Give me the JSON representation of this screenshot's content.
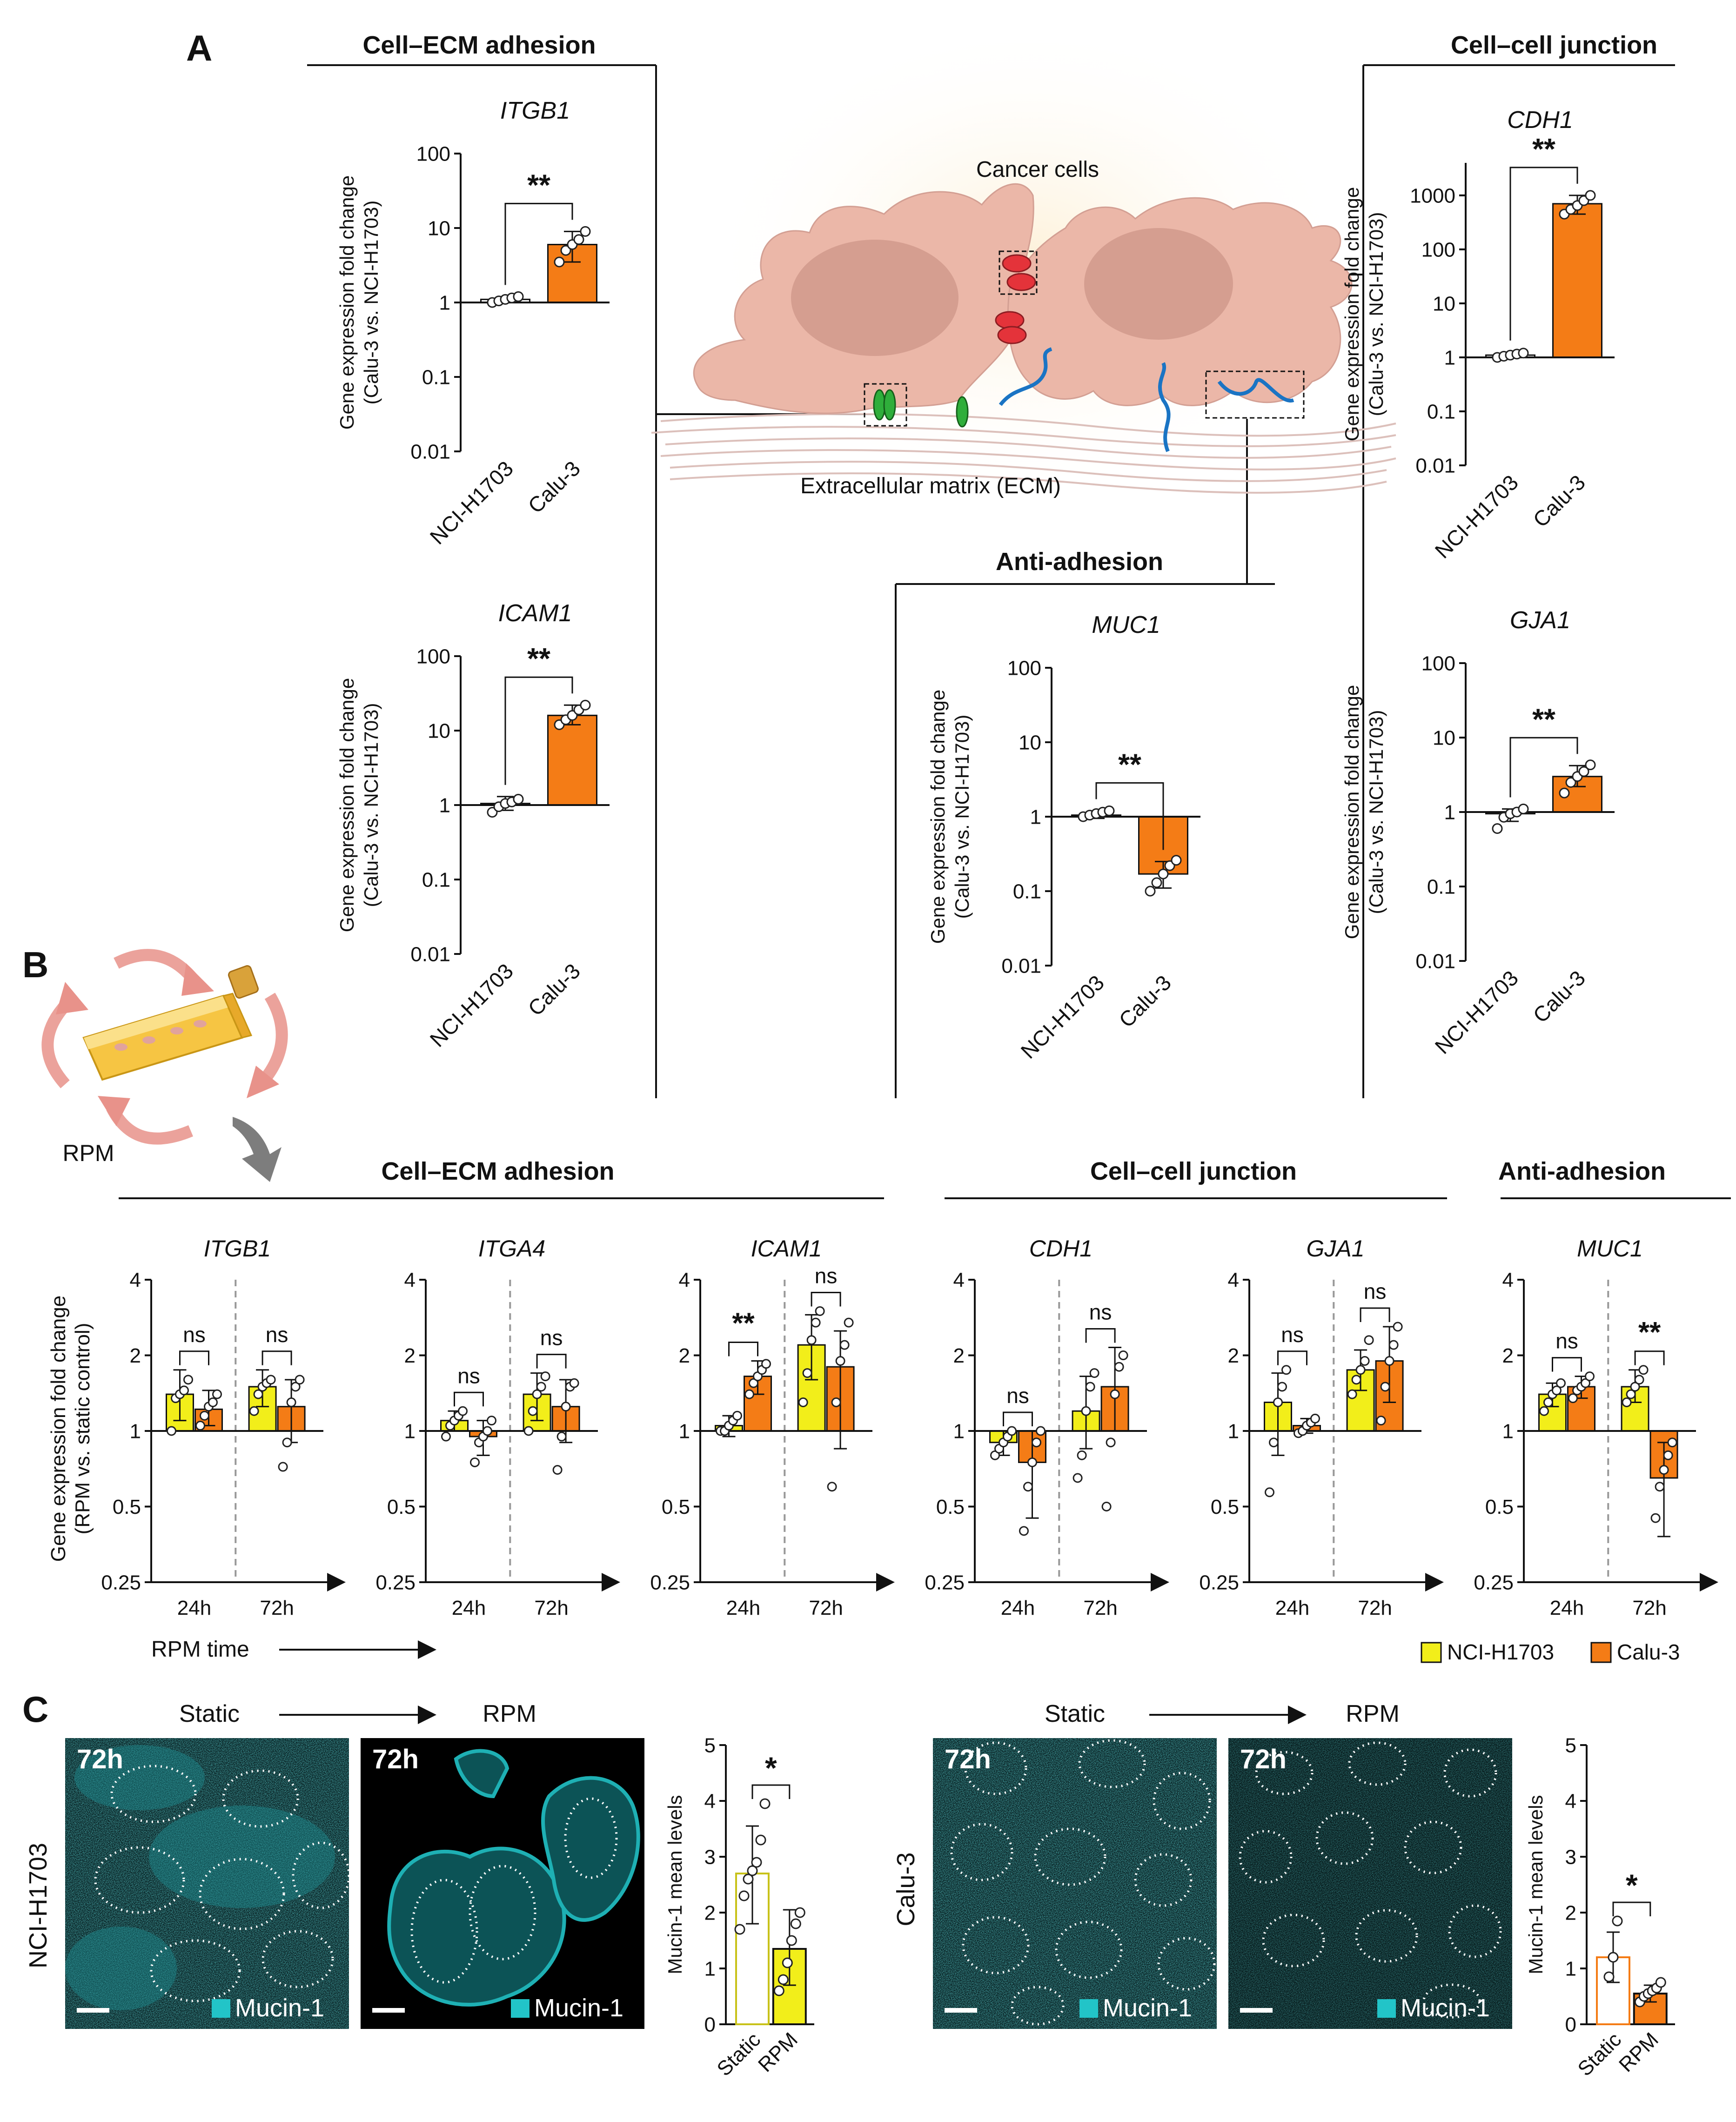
{
  "panel_labels": {
    "a": "A",
    "b": "B",
    "c": "C"
  },
  "panel_a": {
    "section_titles": {
      "ecm": "Cell–ECM adhesion",
      "cellcell": "Cell–cell junction",
      "anti": "Anti-adhesion"
    },
    "schematic": {
      "cancer_cells": "Cancer cells",
      "ecm_label": "Extracellular matrix (ECM)"
    }
  },
  "panel_b": {
    "device_label": "RPM",
    "section_titles": {
      "ecm": "Cell–ECM adhesion",
      "cellcell": "Cell–cell junction",
      "anti": "Anti-adhesion"
    },
    "ylabel_line1": "Gene expression fold change",
    "ylabel_line2": "(RPM vs. static control)",
    "rpm_time_label": "RPM time",
    "legend": [
      "NCI-H1703",
      "Calu-3"
    ]
  },
  "panel_c": {
    "left": {
      "row_label": "NCI-H1703",
      "arrow_from": "Static",
      "arrow_to": "RPM",
      "images": [
        {
          "time": "72h",
          "stain": "Mucin-1"
        },
        {
          "time": "72h",
          "stain": "Mucin-1"
        }
      ]
    },
    "right": {
      "row_label": "Calu-3",
      "arrow_from": "Static",
      "arrow_to": "RPM",
      "images": [
        {
          "time": "72h",
          "stain": "Mucin-1"
        },
        {
          "time": "72h",
          "stain": "Mucin-1"
        }
      ]
    }
  },
  "colors": {
    "nci": "#f2ee1a",
    "calu": "#f47c16",
    "mucin": "#22c4c8"
  },
  "chart_data": [
    {
      "id": "a_itgb1",
      "type": "bar",
      "title": "ITGB1",
      "scale": "log10",
      "ylabel": [
        "Gene expression fold change",
        "(Calu-3 vs. NCI-H1703)"
      ],
      "categories": [
        "NCI-H1703",
        "Calu-3"
      ],
      "values": [
        1.1,
        6
      ],
      "error": [
        [
          1.0,
          1.2
        ],
        [
          3.5,
          9
        ]
      ],
      "points": [
        [
          1.0,
          1.05,
          1.1,
          1.15,
          1.2
        ],
        [
          3.5,
          5,
          6,
          7,
          9
        ]
      ],
      "ytick_values": [
        0.01,
        0.1,
        1,
        10,
        100
      ],
      "ytick_labels": [
        "0.01",
        "0.1",
        "1",
        "10",
        "100"
      ],
      "ylim": [
        0.01,
        100
      ],
      "significance": [
        {
          "label": "**"
        }
      ]
    },
    {
      "id": "a_icam1",
      "type": "bar",
      "title": "ICAM1",
      "scale": "log10",
      "ylabel": [
        "Gene expression fold change",
        "(Calu-3 vs. NCI-H1703)"
      ],
      "categories": [
        "NCI-H1703",
        "Calu-3"
      ],
      "values": [
        1.05,
        16
      ],
      "error": [
        [
          0.85,
          1.3
        ],
        [
          12,
          22
        ]
      ],
      "points": [
        [
          0.8,
          0.95,
          1.05,
          1.1,
          1.2
        ],
        [
          12,
          14,
          16,
          19,
          22
        ]
      ],
      "ytick_values": [
        0.01,
        0.1,
        1,
        10,
        100
      ],
      "ytick_labels": [
        "0.01",
        "0.1",
        "1",
        "10",
        "100"
      ],
      "ylim": [
        0.01,
        100
      ],
      "significance": [
        {
          "label": "**"
        }
      ]
    },
    {
      "id": "a_cdh1",
      "type": "bar",
      "title": "CDH1",
      "scale": "log10",
      "ylabel": [
        "Gene expression fold change",
        "(Calu-3 vs. NCI-H1703)"
      ],
      "categories": [
        "NCI-H1703",
        "Calu-3"
      ],
      "values": [
        1.1,
        700
      ],
      "error": [
        [
          1.0,
          1.25
        ],
        [
          450,
          1000
        ]
      ],
      "points": [
        [
          1.0,
          1.05,
          1.1,
          1.15,
          1.2
        ],
        [
          450,
          550,
          650,
          800,
          1000
        ]
      ],
      "ytick_values": [
        0.01,
        0.1,
        1,
        10,
        100,
        1000
      ],
      "ytick_labels": [
        "0.01",
        "0.1",
        "1",
        "10",
        "100",
        "1000"
      ],
      "ylim": [
        0.01,
        4000
      ],
      "significance": [
        {
          "label": "**"
        }
      ]
    },
    {
      "id": "a_muc1",
      "type": "bar",
      "title": "MUC1",
      "scale": "log10",
      "ylabel": [
        "Gene expression fold change",
        "(Calu-3 vs. NCI-H1703)"
      ],
      "categories": [
        "NCI-H1703",
        "Calu-3"
      ],
      "values": [
        1.05,
        0.17
      ],
      "error": [
        [
          0.95,
          1.2
        ],
        [
          0.11,
          0.25
        ]
      ],
      "points": [
        [
          1.0,
          1.05,
          1.1,
          1.15,
          1.2
        ],
        [
          0.1,
          0.13,
          0.17,
          0.22,
          0.26
        ]
      ],
      "ytick_values": [
        0.01,
        0.1,
        1,
        10,
        100
      ],
      "ytick_labels": [
        "0.01",
        "0.1",
        "1",
        "10",
        "100"
      ],
      "ylim": [
        0.01,
        100
      ],
      "significance": [
        {
          "label": "**"
        }
      ]
    },
    {
      "id": "a_gja1",
      "type": "bar",
      "title": "GJA1",
      "scale": "log10",
      "ylabel": [
        "Gene expression fold change",
        "(Calu-3 vs. NCI-H1703)"
      ],
      "categories": [
        "NCI-H1703",
        "Calu-3"
      ],
      "values": [
        0.95,
        3.0
      ],
      "error": [
        [
          0.75,
          1.1
        ],
        [
          2.2,
          4.2
        ]
      ],
      "points": [
        [
          0.6,
          0.85,
          0.95,
          1.0,
          1.1
        ],
        [
          1.8,
          2.5,
          3.0,
          3.5,
          4.3
        ]
      ],
      "ytick_values": [
        0.01,
        0.1,
        1,
        10,
        100
      ],
      "ytick_labels": [
        "0.01",
        "0.1",
        "1",
        "10",
        "100"
      ],
      "ylim": [
        0.01,
        100
      ],
      "significance": [
        {
          "label": "**"
        }
      ]
    },
    {
      "id": "b_itgb1",
      "type": "bar",
      "title": "ITGB1",
      "scale": "log2",
      "x_groups": [
        "24h",
        "72h"
      ],
      "series": [
        "NCI-H1703",
        "Calu-3"
      ],
      "values": [
        [
          1.4,
          1.22
        ],
        [
          1.5,
          1.25
        ]
      ],
      "error": [
        [
          [
            1.1,
            1.75
          ],
          [
            1.05,
            1.45
          ]
        ],
        [
          [
            1.25,
            1.75
          ],
          [
            0.9,
            1.6
          ]
        ]
      ],
      "points": [
        [
          [
            1.0,
            1.35,
            1.4,
            1.45,
            1.6
          ],
          [
            1.05,
            1.15,
            1.25,
            1.3,
            1.4
          ]
        ],
        [
          [
            1.2,
            1.4,
            1.5,
            1.55,
            1.6
          ],
          [
            0.72,
            0.9,
            1.3,
            1.5,
            1.6
          ]
        ]
      ],
      "ytick_values": [
        0.25,
        0.5,
        1,
        2,
        4
      ],
      "ytick_labels": [
        "0.25",
        "0.5",
        "1",
        "2",
        "4"
      ],
      "ylim": [
        0.25,
        4
      ],
      "significance": [
        {
          "label": "ns"
        },
        {
          "label": "ns"
        }
      ]
    },
    {
      "id": "b_itga4",
      "type": "bar",
      "title": "ITGA4",
      "scale": "log2",
      "x_groups": [
        "24h",
        "72h"
      ],
      "series": [
        "NCI-H1703",
        "Calu-3"
      ],
      "values": [
        [
          1.1,
          0.95
        ],
        [
          1.4,
          1.25
        ]
      ],
      "error": [
        [
          [
            1.0,
            1.2
          ],
          [
            0.8,
            1.1
          ]
        ],
        [
          [
            1.1,
            1.7
          ],
          [
            0.9,
            1.6
          ]
        ]
      ],
      "points": [
        [
          [
            0.95,
            1.05,
            1.1,
            1.15,
            1.2
          ],
          [
            0.75,
            0.9,
            0.95,
            1.0,
            1.1
          ]
        ],
        [
          [
            1.0,
            1.2,
            1.4,
            1.5,
            1.65
          ],
          [
            0.7,
            0.95,
            1.25,
            1.5,
            1.55
          ]
        ]
      ],
      "ytick_values": [
        0.25,
        0.5,
        1,
        2,
        4
      ],
      "ytick_labels": [
        "0.25",
        "0.5",
        "1",
        "2",
        "4"
      ],
      "ylim": [
        0.25,
        4
      ],
      "significance": [
        {
          "label": "ns"
        },
        {
          "label": "ns"
        }
      ]
    },
    {
      "id": "b_icam1",
      "type": "bar",
      "title": "ICAM1",
      "scale": "log2",
      "x_groups": [
        "24h",
        "72h"
      ],
      "series": [
        "NCI-H1703",
        "Calu-3"
      ],
      "values": [
        [
          1.05,
          1.65
        ],
        [
          2.2,
          1.8
        ]
      ],
      "error": [
        [
          [
            0.95,
            1.15
          ],
          [
            1.4,
            1.9
          ]
        ],
        [
          [
            1.6,
            2.9
          ],
          [
            0.85,
            2.5
          ]
        ]
      ],
      "points": [
        [
          [
            1.0,
            1.0,
            1.05,
            1.1,
            1.15
          ],
          [
            1.4,
            1.55,
            1.65,
            1.75,
            1.85
          ]
        ],
        [
          [
            1.3,
            1.7,
            2.3,
            2.7,
            3.0
          ],
          [
            0.6,
            1.3,
            1.9,
            2.2,
            2.7
          ]
        ]
      ],
      "ytick_values": [
        0.25,
        0.5,
        1,
        2,
        4
      ],
      "ytick_labels": [
        "0.25",
        "0.5",
        "1",
        "2",
        "4"
      ],
      "ylim": [
        0.25,
        4
      ],
      "significance": [
        {
          "label": "**"
        },
        {
          "label": "ns"
        }
      ]
    },
    {
      "id": "b_cdh1",
      "type": "bar",
      "title": "CDH1",
      "scale": "log2",
      "x_groups": [
        "24h",
        "72h"
      ],
      "series": [
        "NCI-H1703",
        "Calu-3"
      ],
      "values": [
        [
          0.9,
          0.75
        ],
        [
          1.2,
          1.5
        ]
      ],
      "error": [
        [
          [
            0.8,
            1.0
          ],
          [
            0.45,
            1.0
          ]
        ],
        [
          [
            0.85,
            1.65
          ],
          [
            1.0,
            2.15
          ]
        ]
      ],
      "points": [
        [
          [
            0.8,
            0.85,
            0.9,
            0.95,
            1.0
          ],
          [
            0.4,
            0.6,
            0.75,
            0.9,
            1.0
          ]
        ],
        [
          [
            0.65,
            0.8,
            1.2,
            1.5,
            1.7
          ],
          [
            0.5,
            0.9,
            1.4,
            1.8,
            2.0
          ]
        ]
      ],
      "ytick_values": [
        0.25,
        0.5,
        1,
        2,
        4
      ],
      "ytick_labels": [
        "0.25",
        "0.5",
        "1",
        "2",
        "4"
      ],
      "ylim": [
        0.25,
        4
      ],
      "significance": [
        {
          "label": "ns"
        },
        {
          "label": "ns"
        }
      ]
    },
    {
      "id": "b_gja1",
      "type": "bar",
      "title": "GJA1",
      "scale": "log2",
      "x_groups": [
        "24h",
        "72h"
      ],
      "series": [
        "NCI-H1703",
        "Calu-3"
      ],
      "values": [
        [
          1.3,
          1.05
        ],
        [
          1.75,
          1.9
        ]
      ],
      "error": [
        [
          [
            0.8,
            1.7
          ],
          [
            0.98,
            1.12
          ]
        ],
        [
          [
            1.45,
            2.1
          ],
          [
            1.3,
            2.6
          ]
        ]
      ],
      "points": [
        [
          [
            0.57,
            0.9,
            1.3,
            1.5,
            1.75
          ],
          [
            0.98,
            1.0,
            1.05,
            1.08,
            1.12
          ]
        ],
        [
          [
            1.4,
            1.6,
            1.75,
            1.9,
            2.3
          ],
          [
            1.1,
            1.5,
            1.9,
            2.2,
            2.6
          ]
        ]
      ],
      "ytick_values": [
        0.25,
        0.5,
        1,
        2,
        4
      ],
      "ytick_labels": [
        "0.25",
        "0.5",
        "1",
        "2",
        "4"
      ],
      "ylim": [
        0.25,
        4
      ],
      "significance": [
        {
          "label": "ns"
        },
        {
          "label": "ns"
        }
      ]
    },
    {
      "id": "b_muc1",
      "type": "bar",
      "title": "MUC1",
      "scale": "log2",
      "x_groups": [
        "24h",
        "72h"
      ],
      "series": [
        "NCI-H1703",
        "Calu-3"
      ],
      "values": [
        [
          1.4,
          1.5
        ],
        [
          1.5,
          0.65
        ]
      ],
      "error": [
        [
          [
            1.25,
            1.55
          ],
          [
            1.35,
            1.65
          ]
        ],
        [
          [
            1.3,
            1.75
          ],
          [
            0.38,
            0.9
          ]
        ]
      ],
      "points": [
        [
          [
            1.2,
            1.3,
            1.4,
            1.45,
            1.55
          ],
          [
            1.35,
            1.45,
            1.5,
            1.55,
            1.65
          ]
        ],
        [
          [
            1.3,
            1.4,
            1.5,
            1.6,
            1.75
          ],
          [
            0.45,
            0.6,
            0.7,
            0.8,
            0.9
          ]
        ]
      ],
      "ytick_values": [
        0.25,
        0.5,
        1,
        2,
        4
      ],
      "ytick_labels": [
        "0.25",
        "0.5",
        "1",
        "2",
        "4"
      ],
      "ylim": [
        0.25,
        4
      ],
      "significance": [
        {
          "label": "ns"
        },
        {
          "label": "**"
        }
      ]
    },
    {
      "id": "c_nci",
      "type": "bar",
      "scale": "linear",
      "ylabel": "Mucin-1 mean levels",
      "categories": [
        "Static",
        "RPM"
      ],
      "values": [
        2.7,
        1.35
      ],
      "error": [
        [
          1.8,
          3.55
        ],
        [
          0.7,
          2.05
        ]
      ],
      "points": [
        [
          1.7,
          2.3,
          2.6,
          2.75,
          2.9,
          3.3,
          3.95
        ],
        [
          0.6,
          0.8,
          1.1,
          1.5,
          1.8,
          2.0
        ]
      ],
      "ytick_values": [
        0,
        1,
        2,
        3,
        4,
        5
      ],
      "ytick_labels": [
        "0",
        "1",
        "2",
        "3",
        "4",
        "5"
      ],
      "ylim": [
        0,
        5
      ],
      "significance": [
        {
          "label": "*"
        }
      ]
    },
    {
      "id": "c_calu",
      "type": "bar",
      "scale": "linear",
      "ylabel": "Mucin-1 mean levels",
      "categories": [
        "Static",
        "RPM"
      ],
      "values": [
        1.2,
        0.55
      ],
      "error": [
        [
          0.75,
          1.65
        ],
        [
          0.4,
          0.7
        ]
      ],
      "points": [
        [
          0.85,
          1.2,
          1.85
        ],
        [
          0.4,
          0.5,
          0.55,
          0.6,
          0.65,
          0.75
        ]
      ],
      "ytick_values": [
        0,
        1,
        2,
        3,
        4,
        5
      ],
      "ytick_labels": [
        "0",
        "1",
        "2",
        "3",
        "4",
        "5"
      ],
      "ylim": [
        0,
        5
      ],
      "significance": [
        {
          "label": "*"
        }
      ]
    }
  ]
}
